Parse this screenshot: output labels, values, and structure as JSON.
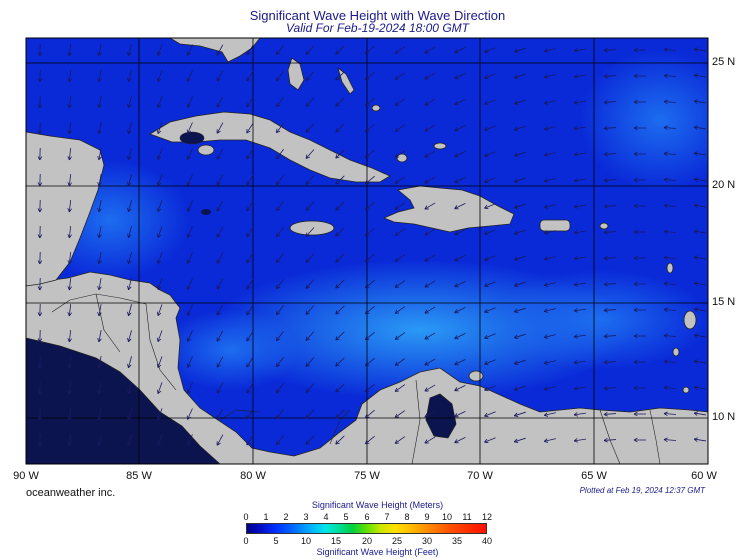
{
  "title": "Significant Wave Height with Wave Direction",
  "subtitle": "Valid For Feb-19-2024 18:00 GMT",
  "brand": "oceanweather inc.",
  "plotted_note": "Plotted at Feb 19, 2024 12:37 GMT",
  "longitude_labels": [
    "90 W",
    "85 W",
    "80 W",
    "75 W",
    "70 W",
    "65 W",
    "60 W"
  ],
  "latitude_labels": [
    "25 N",
    "20 N",
    "15 N",
    "10 N"
  ],
  "legend": {
    "title_meters": "Significant Wave Height (Meters)",
    "title_feet": "Significant Wave Height (Feet)",
    "meters_ticks": [
      "0",
      "1",
      "2",
      "3",
      "4",
      "5",
      "6",
      "7",
      "8",
      "9",
      "10",
      "11",
      "12"
    ],
    "feet_ticks": [
      "0",
      "5",
      "10",
      "15",
      "20",
      "25",
      "30",
      "35",
      "40"
    ]
  },
  "colors": {
    "land": "#c2c2c2",
    "sea_low": "#0a2ad8",
    "sea_mid": "#1e6cf0",
    "sea_high": "#2a9af6",
    "deep_navy": "#0c1450",
    "arrow": "#1a1a60",
    "title": "#1a1a8c"
  },
  "icons": {
    "arrow": "wave-direction-arrow-icon"
  }
}
